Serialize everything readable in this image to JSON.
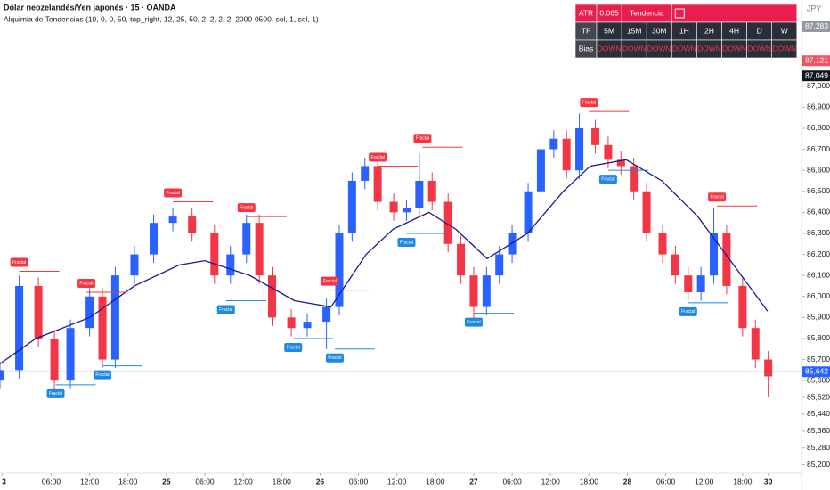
{
  "header": {
    "symbol": "Dólar neozelandés/Yen japonés · 15 · OANDA",
    "indicator": "Alquimia de Tendencias (10, 0, 0, 50, top_right, 12, 25, 50, 2, 2, 2, 2, 2000-0500, sol, 1, sol, 1)",
    "currency": "JPY"
  },
  "table": {
    "atr_label": "ATR",
    "atr_value": "0.065",
    "trend_label": "Tendencia",
    "tf_label": "TF",
    "timeframes": [
      "5M",
      "15M",
      "30M",
      "1H",
      "2H",
      "4H",
      "D",
      "W"
    ],
    "bias_label": "Bias",
    "bias": [
      "DOWN",
      "DOWN",
      "DOWN",
      "DOWN",
      "DOWN",
      "DOWN",
      "DOWN",
      "DOWN"
    ]
  },
  "chart_data": {
    "type": "candlestick",
    "x": [
      -26,
      -23,
      -20,
      -17.5,
      -15,
      -12,
      -10,
      -8,
      -5,
      -2,
      1,
      4,
      7.5,
      10,
      12.5,
      14.5,
      16.5,
      19.5,
      22,
      25,
      27,
      29,
      31,
      33,
      35.5,
      37.5,
      39.5,
      41.5,
      44,
      46,
      48,
      50,
      52,
      54,
      56.5,
      58.5,
      60.5,
      62.5,
      64.5,
      67,
      69,
      71,
      73,
      75,
      77.5,
      79.5,
      81.5,
      83.5,
      85.5,
      87.5,
      90,
      92,
      94
    ],
    "open": [
      85.6,
      85.65,
      86.05,
      85.8,
      85.6,
      85.85,
      86.0,
      85.7,
      86.1,
      86.2,
      86.35,
      86.38,
      86.3,
      86.1,
      86.2,
      86.35,
      86.1,
      85.9,
      85.85,
      85.88,
      85.95,
      86.3,
      86.55,
      86.62,
      86.45,
      86.4,
      86.42,
      86.55,
      86.45,
      86.25,
      86.1,
      85.95,
      86.1,
      86.2,
      86.3,
      86.5,
      86.7,
      86.75,
      86.6,
      86.8,
      86.72,
      86.65,
      86.62,
      86.5,
      86.3,
      86.2,
      86.1,
      86.02,
      86.1,
      86.3,
      86.05,
      85.85,
      85.7
    ],
    "high": [
      85.69,
      86.1,
      86.09,
      85.84,
      85.89,
      86.04,
      86.04,
      86.14,
      86.24,
      86.39,
      86.42,
      86.42,
      86.34,
      86.24,
      86.39,
      86.39,
      86.14,
      85.94,
      85.92,
      85.99,
      86.34,
      86.59,
      86.66,
      86.66,
      86.49,
      86.46,
      86.68,
      86.59,
      86.49,
      86.29,
      86.14,
      86.14,
      86.24,
      86.34,
      86.54,
      86.74,
      86.79,
      86.79,
      86.87,
      86.84,
      86.76,
      86.69,
      86.66,
      86.54,
      86.34,
      86.24,
      86.14,
      86.14,
      86.42,
      86.34,
      86.09,
      85.89,
      85.74
    ],
    "low": [
      85.56,
      85.61,
      85.76,
      85.55,
      85.56,
      85.81,
      85.66,
      85.66,
      86.06,
      86.16,
      86.31,
      86.26,
      86.06,
      86.06,
      86.16,
      86.06,
      85.86,
      85.81,
      85.81,
      85.75,
      85.91,
      86.26,
      86.51,
      86.41,
      86.36,
      86.36,
      86.38,
      86.41,
      86.21,
      86.06,
      85.88,
      85.91,
      86.06,
      86.16,
      86.26,
      86.46,
      86.66,
      86.56,
      86.56,
      86.68,
      86.61,
      86.58,
      86.46,
      86.26,
      86.16,
      86.06,
      85.98,
      85.98,
      86.06,
      86.01,
      85.81,
      85.66,
      85.52
    ],
    "close": [
      85.65,
      86.05,
      85.8,
      85.6,
      85.85,
      86.0,
      85.7,
      86.1,
      86.2,
      86.35,
      86.38,
      86.3,
      86.1,
      86.2,
      86.35,
      86.1,
      85.9,
      85.85,
      85.88,
      85.95,
      86.3,
      86.55,
      86.62,
      86.45,
      86.4,
      86.42,
      86.55,
      86.45,
      86.25,
      86.1,
      85.95,
      86.1,
      86.2,
      86.3,
      86.5,
      86.7,
      86.75,
      86.6,
      86.8,
      86.72,
      86.65,
      86.62,
      86.5,
      86.3,
      86.2,
      86.1,
      86.02,
      86.1,
      86.3,
      86.05,
      85.85,
      85.7,
      85.62
    ],
    "up_color": "#2962ff",
    "down_color": "#f23645",
    "ma": {
      "color": "#1a1a8c",
      "x": [
        -26,
        -20.4,
        -12,
        -5,
        2,
        6,
        13,
        20,
        25.7,
        31.2,
        35.4,
        41,
        45.2,
        50.1,
        56.4,
        62,
        66.2,
        71.8,
        77.4,
        83,
        88.6,
        93.9
      ],
      "values": [
        85.68,
        85.8,
        85.9,
        86.05,
        86.15,
        86.17,
        86.1,
        85.98,
        85.95,
        86.2,
        86.32,
        86.4,
        86.32,
        86.18,
        86.3,
        86.5,
        86.62,
        86.65,
        86.55,
        86.38,
        86.15,
        85.93
      ]
    },
    "fractals": {
      "label": "Fractal",
      "high_color": "#f23645",
      "low_color": "#1e88e5",
      "highs": [
        {
          "x": -23,
          "value": 86.12
        },
        {
          "x": -12.5,
          "value": 86.02
        },
        {
          "x": 1,
          "value": 86.45
        },
        {
          "x": 12.5,
          "value": 86.38
        },
        {
          "x": 25.5,
          "value": 86.03
        },
        {
          "x": 33,
          "value": 86.62
        },
        {
          "x": 40,
          "value": 86.71
        },
        {
          "x": 66,
          "value": 86.88
        },
        {
          "x": 86,
          "value": 86.43
        }
      ],
      "lows": [
        {
          "x": -17.3,
          "value": 85.58
        },
        {
          "x": -10,
          "value": 85.67
        },
        {
          "x": 9.3,
          "value": 85.98
        },
        {
          "x": 19.8,
          "value": 85.8
        },
        {
          "x": 26.3,
          "value": 85.75
        },
        {
          "x": 37.5,
          "value": 86.3
        },
        {
          "x": 48,
          "value": 85.92
        },
        {
          "x": 69,
          "value": 86.6
        },
        {
          "x": 81.5,
          "value": 85.97
        }
      ]
    },
    "xlim": [
      -26,
      99.2
    ],
    "ylim": [
      85.16,
      87.41
    ],
    "yticks": [
      {
        "value": 87.0,
        "label": "87,000"
      },
      {
        "value": 86.9,
        "label": "86,900"
      },
      {
        "value": 86.8,
        "label": "86,800"
      },
      {
        "value": 86.7,
        "label": "86,700"
      },
      {
        "value": 86.6,
        "label": "86,600"
      },
      {
        "value": 86.5,
        "label": "86,500"
      },
      {
        "value": 86.4,
        "label": "86,400"
      },
      {
        "value": 86.3,
        "label": "86,300"
      },
      {
        "value": 86.2,
        "label": "86,200"
      },
      {
        "value": 86.1,
        "label": "86,100"
      },
      {
        "value": 86.0,
        "label": "86,000"
      },
      {
        "value": 85.9,
        "label": "85,900"
      },
      {
        "value": 85.8,
        "label": "85,800"
      },
      {
        "value": 85.7,
        "label": "85,700"
      },
      {
        "value": 85.6,
        "label": "85,600"
      },
      {
        "value": 85.52,
        "label": "85,520"
      },
      {
        "value": 85.44,
        "label": "85,440"
      },
      {
        "value": 85.36,
        "label": "85,360"
      },
      {
        "value": 85.28,
        "label": "85,280"
      },
      {
        "value": 85.2,
        "label": "85,200"
      }
    ],
    "xticks": [
      {
        "value": -25.7,
        "label": "3"
      },
      {
        "value": -18,
        "label": "06:00"
      },
      {
        "value": -12,
        "label": "12:00"
      },
      {
        "value": -6,
        "label": "18:00"
      },
      {
        "value": 0,
        "label": "25"
      },
      {
        "value": 6,
        "label": "06:00"
      },
      {
        "value": 12,
        "label": "12:00"
      },
      {
        "value": 18,
        "label": "18:00"
      },
      {
        "value": 24,
        "label": "26"
      },
      {
        "value": 30,
        "label": "06:00"
      },
      {
        "value": 36,
        "label": "12:00"
      },
      {
        "value": 42,
        "label": "18:00"
      },
      {
        "value": 48,
        "label": "27"
      },
      {
        "value": 54,
        "label": "06:00"
      },
      {
        "value": 60,
        "label": "12:00"
      },
      {
        "value": 66,
        "label": "18:00"
      },
      {
        "value": 72,
        "label": "28"
      },
      {
        "value": 78,
        "label": "06:00"
      },
      {
        "value": 84,
        "label": "12:00"
      },
      {
        "value": 90,
        "label": "18:00"
      },
      {
        "value": 94,
        "label": "30"
      }
    ],
    "price_tags": [
      {
        "value": 87.283,
        "label": "87,283",
        "color": "#9598a1"
      },
      {
        "value": 87.121,
        "label": "87,121",
        "color": "#f7525f"
      },
      {
        "value": 87.049,
        "label": "87,049",
        "color": "#131722"
      },
      {
        "value": 85.642,
        "label": "85,642",
        "color": "#2962ff"
      }
    ]
  }
}
